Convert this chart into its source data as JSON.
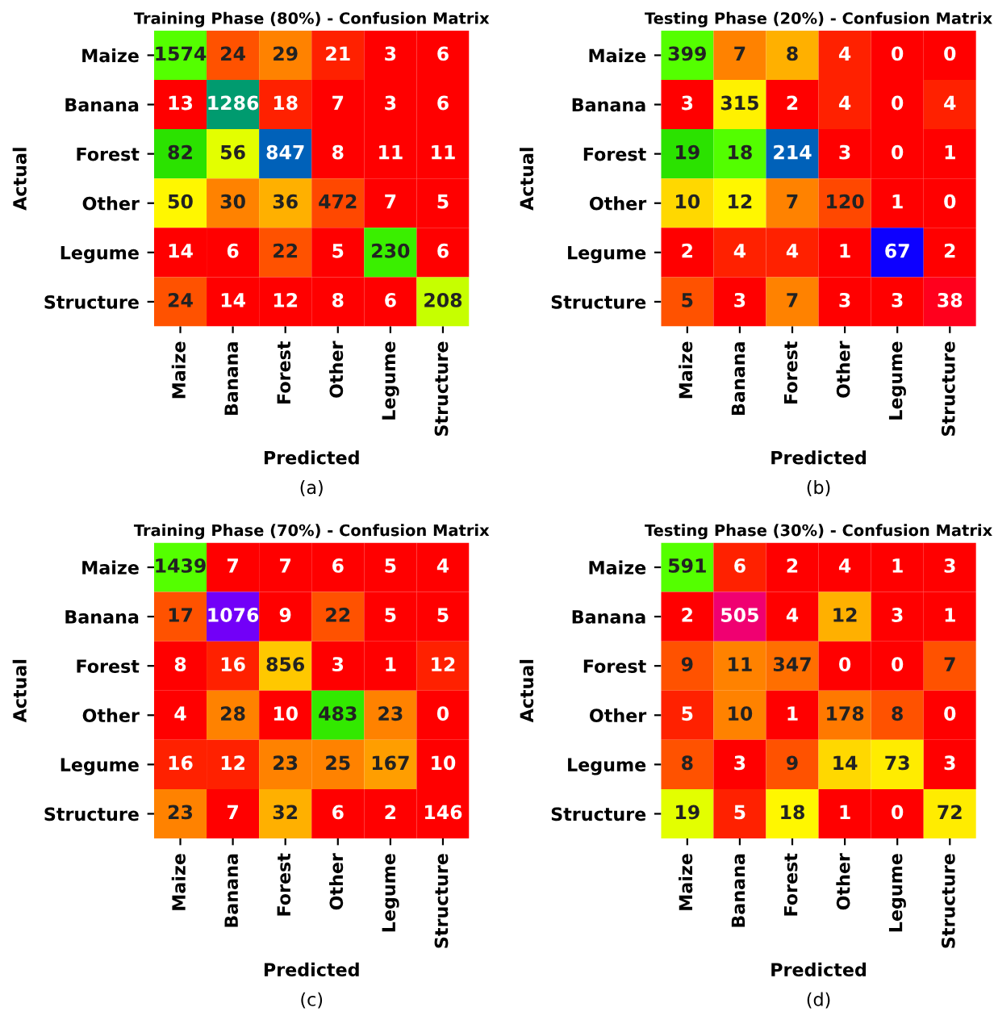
{
  "chart_data": [
    {
      "type": "heatmap",
      "title": "Training Phase (80%) - Confusion Matrix",
      "xlabel": "Predicted",
      "ylabel": "Actual",
      "annotations": [
        "(a)"
      ],
      "data_labels": true,
      "categories": [
        "Maize",
        "Banana",
        "Forest",
        "Other",
        "Legume",
        "Structure"
      ],
      "y_categories": [
        "Maize",
        "Banana",
        "Forest",
        "Other",
        "Legume",
        "Structure"
      ],
      "cells": [
        [
          1574,
          24,
          29,
          21,
          3,
          6
        ],
        [
          13,
          1286,
          18,
          7,
          3,
          6
        ],
        [
          82,
          56,
          847,
          8,
          11,
          11
        ],
        [
          50,
          30,
          36,
          472,
          7,
          5
        ],
        [
          14,
          6,
          22,
          5,
          230,
          6
        ],
        [
          24,
          14,
          12,
          8,
          6,
          208
        ]
      ]
    },
    {
      "type": "heatmap",
      "title": "Testing Phase (20%) - Confusion Matrix",
      "xlabel": "Predicted",
      "ylabel": "Actual",
      "annotations": [
        "(b)"
      ],
      "data_labels": true,
      "categories": [
        "Maize",
        "Banana",
        "Forest",
        "Other",
        "Legume",
        "Structure"
      ],
      "y_categories": [
        "Maize",
        "Banana",
        "Forest",
        "Other",
        "Legume",
        "Structure"
      ],
      "cells": [
        [
          399,
          7,
          8,
          4,
          0,
          0
        ],
        [
          3,
          315,
          2,
          4,
          0,
          4
        ],
        [
          19,
          18,
          214,
          3,
          0,
          1
        ],
        [
          10,
          12,
          7,
          120,
          1,
          0
        ],
        [
          2,
          4,
          4,
          1,
          67,
          2
        ],
        [
          5,
          3,
          7,
          3,
          3,
          38
        ]
      ]
    },
    {
      "type": "heatmap",
      "title": "Training Phase (70%) - Confusion Matrix",
      "xlabel": "Predicted",
      "ylabel": "Actual",
      "annotations": [
        "(c)"
      ],
      "data_labels": true,
      "categories": [
        "Maize",
        "Banana",
        "Forest",
        "Other",
        "Legume",
        "Structure"
      ],
      "y_categories": [
        "Maize",
        "Banana",
        "Forest",
        "Other",
        "Legume",
        "Structure"
      ],
      "cells": [
        [
          1439,
          7,
          7,
          6,
          5,
          4
        ],
        [
          17,
          1076,
          9,
          22,
          5,
          5
        ],
        [
          8,
          16,
          856,
          3,
          1,
          12
        ],
        [
          4,
          28,
          10,
          483,
          23,
          0
        ],
        [
          16,
          12,
          23,
          25,
          167,
          10
        ],
        [
          23,
          7,
          32,
          6,
          2,
          146
        ]
      ]
    },
    {
      "type": "heatmap",
      "title": "Testing Phase (30%) - Confusion Matrix",
      "xlabel": "Predicted",
      "ylabel": "Actual",
      "annotations": [
        "(d)"
      ],
      "data_labels": true,
      "categories": [
        "Maize",
        "Banana",
        "Forest",
        "Other",
        "Legume",
        "Structure"
      ],
      "y_categories": [
        "Maize",
        "Banana",
        "Forest",
        "Other",
        "Legume",
        "Structure"
      ],
      "cells": [
        [
          591,
          6,
          2,
          4,
          1,
          3
        ],
        [
          2,
          505,
          4,
          12,
          3,
          1
        ],
        [
          9,
          11,
          347,
          0,
          0,
          7
        ],
        [
          5,
          10,
          1,
          178,
          8,
          0
        ],
        [
          8,
          3,
          9,
          14,
          73,
          3
        ],
        [
          19,
          5,
          18,
          1,
          0,
          72
        ]
      ]
    }
  ]
}
